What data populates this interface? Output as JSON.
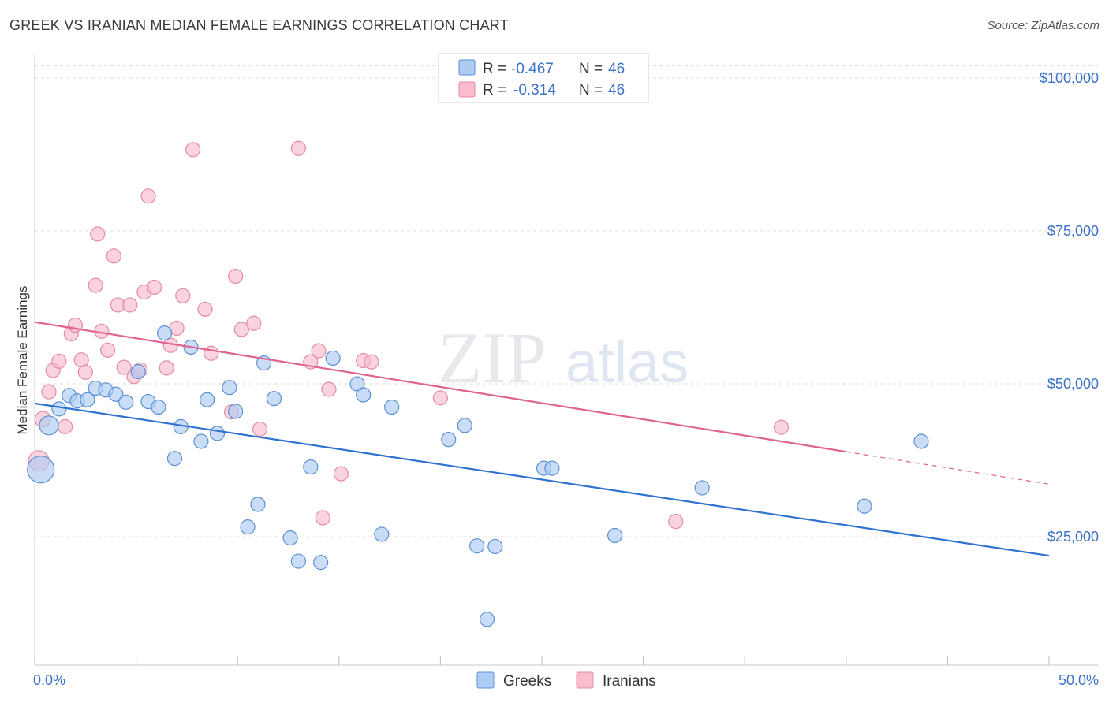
{
  "header": {
    "title": "GREEK VS IRANIAN MEDIAN FEMALE EARNINGS CORRELATION CHART",
    "source": "Source: ZipAtlas.com"
  },
  "watermark": {
    "zip": "ZIP",
    "atlas": "atlas"
  },
  "legend": {
    "rows": [
      {
        "r_label": "R =",
        "r_value": "-0.467",
        "n_label": "N =",
        "n_value": "46",
        "color": "#aecbf2"
      },
      {
        "r_label": "R =",
        "r_value": "-0.314",
        "n_label": "N =",
        "n_value": "46",
        "color": "#f8bccd"
      }
    ]
  },
  "bottom_legend": {
    "greeks": "Greeks",
    "iranians": "Iranians"
  },
  "colors": {
    "greeks_fill": "#aecbf2",
    "greeks_stroke": "#5b8fd6",
    "greeks_line": "#2f72d0",
    "iranians_fill": "#f8bccd",
    "iranians_stroke": "#e58aa7",
    "iranians_line": "#e0628e"
  },
  "chart_data": {
    "type": "scatter",
    "ylabel": "Median Female Earnings",
    "xlim": [
      0,
      50
    ],
    "ylim": [
      4000,
      104000
    ],
    "x_tick_labels": [
      "0.0%",
      "50.0%"
    ],
    "y_ticks": [
      25000,
      50000,
      75000,
      100000
    ],
    "y_tick_labels": [
      "$25,000",
      "$50,000",
      "$75,000",
      "$100,000"
    ],
    "grid": true,
    "series": [
      {
        "name": "Greeks",
        "trend": {
          "x": [
            0,
            50
          ],
          "y": [
            46800,
            21900
          ]
        },
        "points": [
          [
            0.3,
            36000,
            34
          ],
          [
            0.7,
            43200,
            24
          ],
          [
            1.2,
            45900,
            18
          ],
          [
            1.7,
            48100,
            18
          ],
          [
            2.1,
            47200,
            18
          ],
          [
            2.6,
            47400,
            18
          ],
          [
            3.0,
            49300,
            18
          ],
          [
            3.5,
            49000,
            18
          ],
          [
            4.0,
            48300,
            18
          ],
          [
            4.5,
            47000,
            18
          ],
          [
            5.1,
            52000,
            18
          ],
          [
            5.6,
            47100,
            18
          ],
          [
            6.1,
            46200,
            18
          ],
          [
            6.4,
            58300,
            18
          ],
          [
            6.9,
            37800,
            18
          ],
          [
            7.2,
            43000,
            18
          ],
          [
            7.7,
            56000,
            18
          ],
          [
            8.2,
            40600,
            18
          ],
          [
            8.5,
            47400,
            18
          ],
          [
            9.0,
            41900,
            18
          ],
          [
            9.6,
            49400,
            18
          ],
          [
            9.9,
            45500,
            18
          ],
          [
            10.5,
            26600,
            18
          ],
          [
            11.0,
            30300,
            18
          ],
          [
            11.3,
            53400,
            18
          ],
          [
            11.8,
            47600,
            18
          ],
          [
            12.6,
            24800,
            18
          ],
          [
            13.0,
            21000,
            18
          ],
          [
            13.6,
            36400,
            18
          ],
          [
            14.1,
            20800,
            18
          ],
          [
            14.7,
            54200,
            18
          ],
          [
            15.9,
            50000,
            18
          ],
          [
            16.2,
            48200,
            18
          ],
          [
            17.1,
            25400,
            18
          ],
          [
            17.6,
            46200,
            18
          ],
          [
            20.4,
            40900,
            18
          ],
          [
            21.2,
            43200,
            18
          ],
          [
            21.8,
            23500,
            18
          ],
          [
            22.3,
            11500,
            18
          ],
          [
            22.7,
            23400,
            18
          ],
          [
            25.1,
            36200,
            18
          ],
          [
            25.5,
            36200,
            18
          ],
          [
            28.6,
            25200,
            18
          ],
          [
            32.9,
            33000,
            18
          ],
          [
            40.9,
            30000,
            18
          ],
          [
            43.7,
            40600,
            18
          ]
        ]
      },
      {
        "name": "Iranians",
        "trend": {
          "x": [
            0,
            40
          ],
          "y": [
            60100,
            38900
          ]
        },
        "trend_dashed": {
          "x": [
            40,
            50
          ],
          "y": [
            38900,
            33600
          ]
        },
        "points": [
          [
            0.2,
            37400,
            26
          ],
          [
            0.4,
            44200,
            20
          ],
          [
            0.7,
            48700,
            18
          ],
          [
            0.9,
            52200,
            18
          ],
          [
            1.2,
            53700,
            18
          ],
          [
            1.5,
            43000,
            18
          ],
          [
            1.8,
            58200,
            18
          ],
          [
            2.0,
            59600,
            18
          ],
          [
            2.3,
            53900,
            18
          ],
          [
            2.5,
            51900,
            18
          ],
          [
            3.0,
            66100,
            18
          ],
          [
            3.1,
            74500,
            18
          ],
          [
            3.3,
            58600,
            18
          ],
          [
            3.6,
            55500,
            18
          ],
          [
            3.9,
            70900,
            18
          ],
          [
            4.1,
            62900,
            18
          ],
          [
            4.4,
            52700,
            18
          ],
          [
            4.7,
            62900,
            18
          ],
          [
            4.9,
            51200,
            18
          ],
          [
            5.2,
            52300,
            18
          ],
          [
            5.4,
            65000,
            18
          ],
          [
            5.6,
            80700,
            18
          ],
          [
            5.9,
            65800,
            18
          ],
          [
            6.5,
            52600,
            18
          ],
          [
            6.7,
            56300,
            18
          ],
          [
            7.0,
            59100,
            18
          ],
          [
            7.3,
            64400,
            18
          ],
          [
            7.8,
            88300,
            18
          ],
          [
            8.4,
            62200,
            18
          ],
          [
            8.7,
            55000,
            18
          ],
          [
            9.7,
            45400,
            18
          ],
          [
            9.9,
            67600,
            18
          ],
          [
            10.2,
            58900,
            18
          ],
          [
            10.8,
            59900,
            18
          ],
          [
            11.1,
            42600,
            18
          ],
          [
            13.0,
            88500,
            18
          ],
          [
            13.6,
            53600,
            18
          ],
          [
            14.0,
            55400,
            18
          ],
          [
            14.2,
            28100,
            18
          ],
          [
            14.5,
            49100,
            18
          ],
          [
            15.1,
            35300,
            18
          ],
          [
            16.2,
            53800,
            18
          ],
          [
            16.6,
            53600,
            18
          ],
          [
            20.0,
            47700,
            18
          ],
          [
            31.6,
            27500,
            18
          ],
          [
            36.8,
            42900,
            18
          ]
        ]
      }
    ]
  }
}
